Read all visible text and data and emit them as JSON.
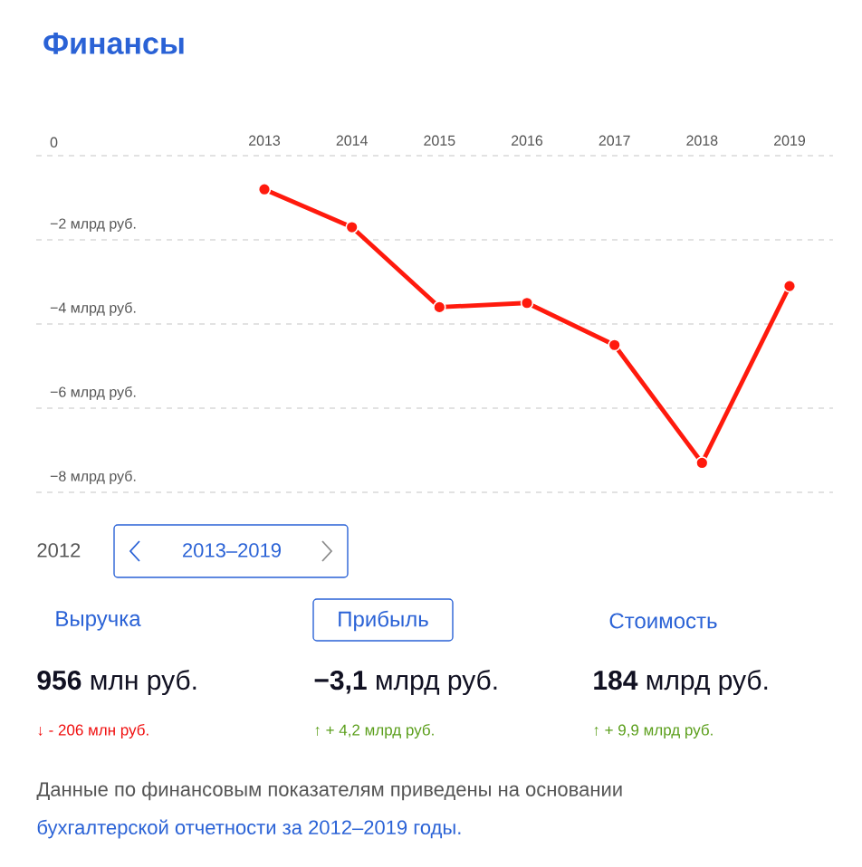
{
  "chart_data": {
    "type": "line",
    "title": "Финансы",
    "categories": [
      "2013",
      "2014",
      "2015",
      "2016",
      "2017",
      "2018",
      "2019"
    ],
    "series": [
      {
        "color": "#ff1a0d",
        "values": [
          -0.8,
          -1.7,
          -3.6,
          -3.5,
          -4.5,
          -7.3,
          -3.1
        ]
      }
    ],
    "ylim": [
      -8,
      0
    ],
    "yticks": [
      0,
      {
        "value": -2,
        "label": "−2 млрд руб."
      },
      {
        "value": -4,
        "label": "−4 млрд руб."
      },
      {
        "value": -6,
        "label": "−6 млрд руб."
      },
      {
        "value": -8,
        "label": "−8 млрд руб."
      }
    ],
    "grid": "y",
    "marker": "circle",
    "line_style": "solid",
    "annotations": [
      "2012",
      "2013–2019",
      "Выручка",
      "Прибыль",
      "Стоимость",
      "**956** млн руб.",
      "**−3,1** млрд руб.",
      "**184** млрд руб.",
      "↓ - 206 млн руб.",
      "↑ + 4,2 млрд руб.",
      "↑ + 9,9 млрд руб.",
      "Данные по финансовым показателям приведены на основании",
      "бухгалтерской отчетности за 2012–2019 годы."
    ]
  }
}
